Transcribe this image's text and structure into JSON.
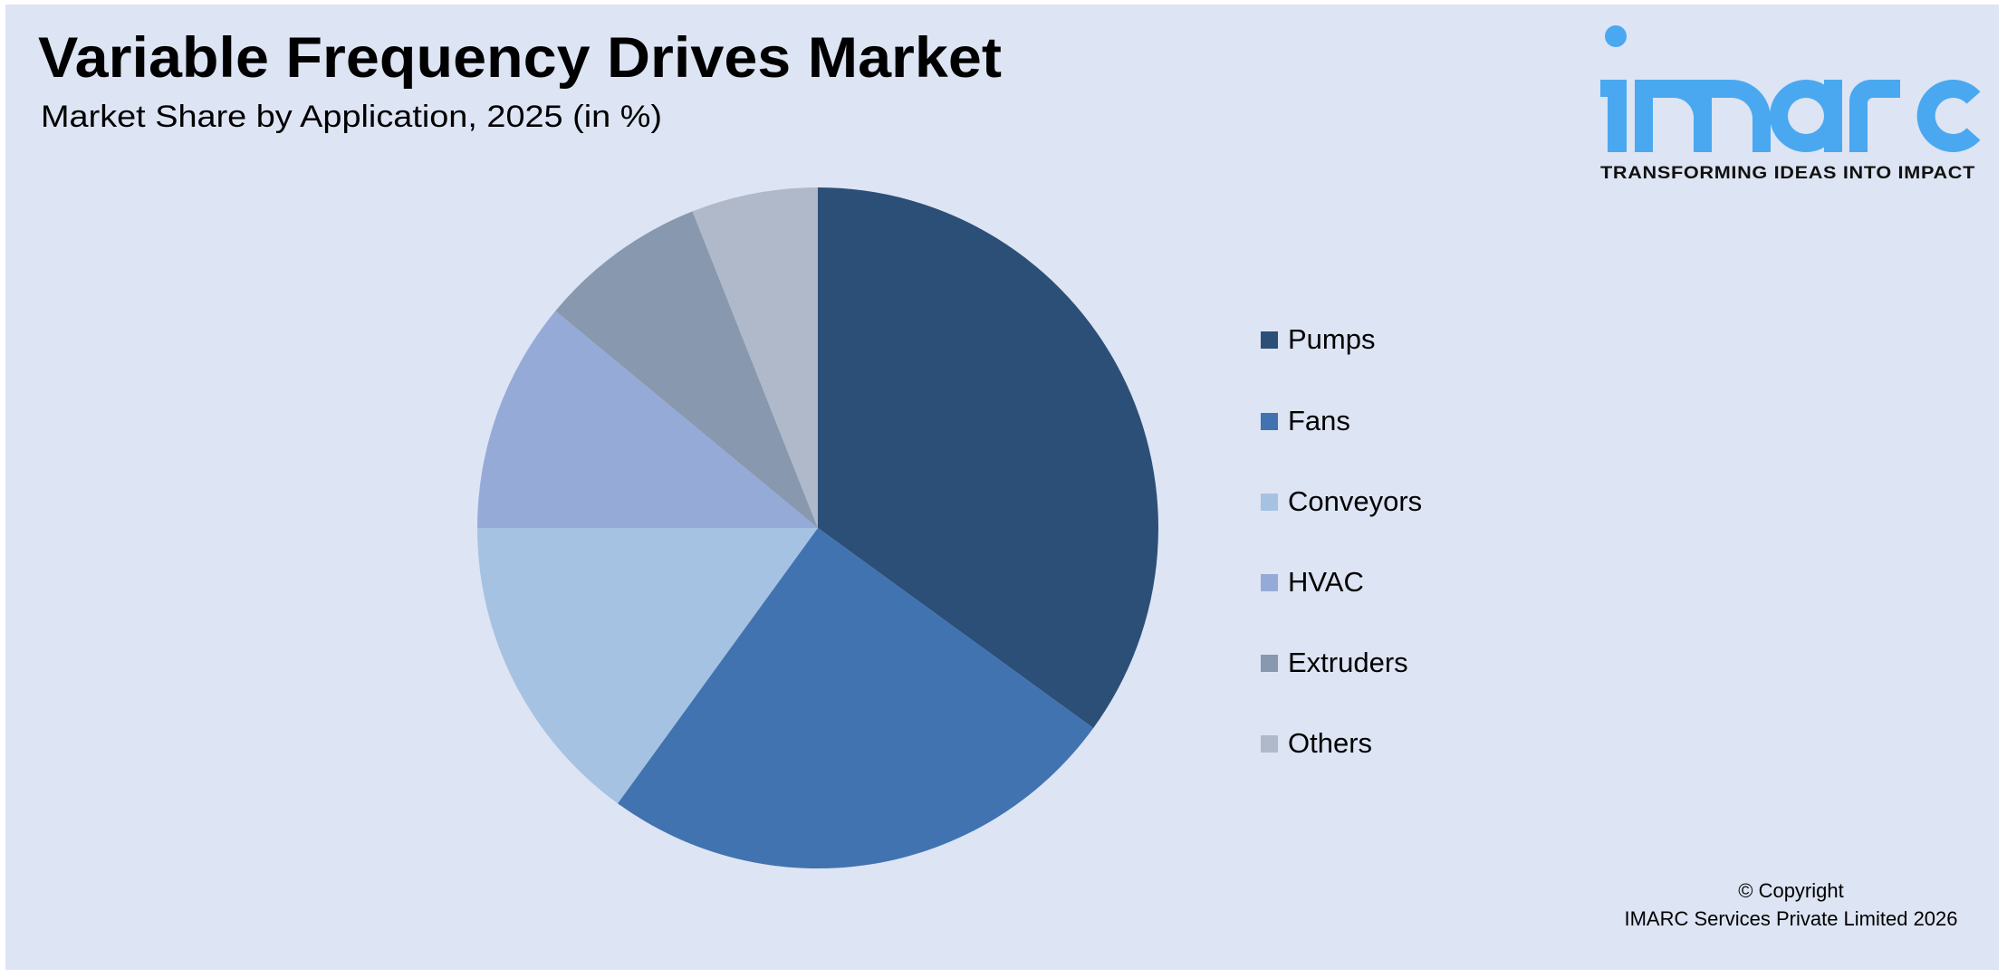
{
  "header": {
    "title": "Variable Frequency Drives Market",
    "subtitle": "Market Share by Application, 2025 (in %)"
  },
  "logo": {
    "wordmark": "imarc",
    "tagline": "TRANSFORMING IDEAS INTO IMPACT",
    "color": "#4AA8F0"
  },
  "footer": {
    "line1": "© Copyright",
    "line2": "IMARC Services Private Limited 2026"
  },
  "colors": {
    "background": "#DDE4F3",
    "border": "#FFFFFF"
  },
  "legend": {
    "items": [
      {
        "label": "Pumps",
        "color": "#2C4F78"
      },
      {
        "label": "Fans",
        "color": "#4173B0"
      },
      {
        "label": "Conveyors",
        "color": "#A6C2E2"
      },
      {
        "label": "HVAC",
        "color": "#96AAD8"
      },
      {
        "label": "Extruders",
        "color": "#8898AF"
      },
      {
        "label": "Others",
        "color": "#AFB9C9"
      }
    ]
  },
  "chart_data": {
    "type": "pie",
    "title": "Variable Frequency Drives Market",
    "subtitle": "Market Share by Application, 2025 (in %)",
    "categories": [
      "Pumps",
      "Fans",
      "Conveyors",
      "HVAC",
      "Extruders",
      "Others"
    ],
    "values": [
      35,
      25,
      15,
      11,
      8,
      6
    ],
    "colors": [
      "#2C4F78",
      "#4173B0",
      "#A6C2E2",
      "#96AAD8",
      "#8898AF",
      "#AFB9C9"
    ],
    "start_angle": "12 o'clock",
    "direction": "clockwise",
    "data_labels": false,
    "legend_position": "right",
    "unit": "%"
  }
}
